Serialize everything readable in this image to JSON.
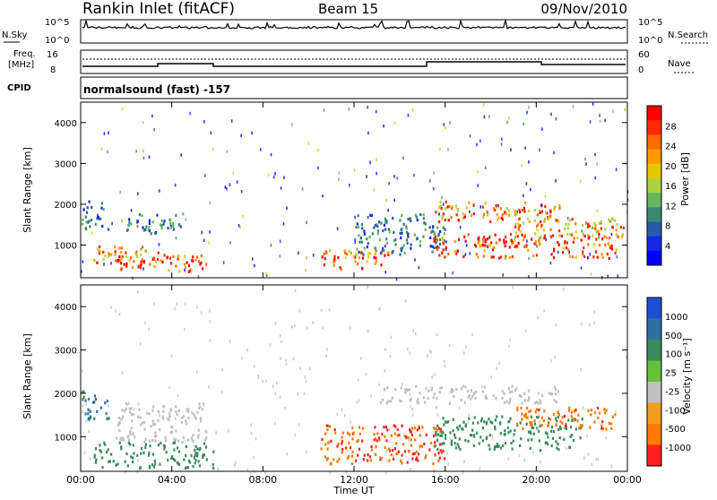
{
  "header": {
    "station": "Rankin Inlet (fitACF)",
    "beam": "Beam 15",
    "date": "09/Nov/2010"
  },
  "nsky_panel": {
    "left_label": "N.Sky",
    "left_ticks": [
      "10^5",
      "10^0"
    ],
    "right_label": "N.Search",
    "right_ticks": [
      "10^5",
      "10^0"
    ]
  },
  "freq_panel": {
    "left_label_1": "Freq.",
    "left_label_2": "[MHz]",
    "left_ticks": [
      "16",
      "8"
    ],
    "right_label": "Nave",
    "right_ticks": [
      "60",
      "0"
    ],
    "cpid_label": "CPID",
    "cpid_value": "normalsound (fast) -157"
  },
  "chart_data": [
    {
      "type": "heatmap",
      "name": "power",
      "ylabel": "Slant Range [km]",
      "y_ticks": [
        "1000",
        "2000",
        "3000",
        "4000"
      ],
      "ylim": [
        200,
        4500
      ],
      "x_ticks": [
        "00:00",
        "04:00",
        "08:00",
        "12:00",
        "16:00",
        "20:00",
        "00:00"
      ],
      "xlim_hours": [
        0,
        24
      ],
      "colorbar_label": "Power [dB]",
      "colorbar_ticks": [
        "28",
        "24",
        "20",
        "16",
        "12",
        "8",
        "4"
      ],
      "colorbar_colors": [
        "#ff0000",
        "#ff2a00",
        "#ff6a00",
        "#ff9a00",
        "#e7c800",
        "#a9d640",
        "#67b860",
        "#3a8a73",
        "#2b5aa8",
        "#1428e8",
        "#0000ff"
      ],
      "regions": [
        {
          "t0": 0.0,
          "t1": 1.2,
          "r0": 1400,
          "r1": 2100,
          "value": 8
        },
        {
          "t0": 0.5,
          "t1": 3.5,
          "r0": 600,
          "r1": 1000,
          "value": 20
        },
        {
          "t0": 1.5,
          "t1": 5.5,
          "r0": 350,
          "r1": 800,
          "value": 26
        },
        {
          "t0": 2.0,
          "t1": 4.5,
          "r0": 1300,
          "r1": 1800,
          "value": 8
        },
        {
          "t0": 10.5,
          "t1": 13.5,
          "r0": 400,
          "r1": 900,
          "value": 24
        },
        {
          "t0": 12.0,
          "t1": 16.0,
          "r0": 800,
          "r1": 1800,
          "value": 8
        },
        {
          "t0": 15.5,
          "t1": 21.0,
          "r0": 1600,
          "r1": 2100,
          "value": 24
        },
        {
          "t0": 15.5,
          "t1": 23.5,
          "r0": 700,
          "r1": 1300,
          "value": 27
        },
        {
          "t0": 19.0,
          "t1": 23.8,
          "r0": 1200,
          "r1": 1700,
          "value": 20
        }
      ]
    },
    {
      "type": "heatmap",
      "name": "velocity",
      "ylabel": "Slant Range [km]",
      "y_ticks": [
        "1000",
        "2000",
        "3000",
        "4000"
      ],
      "ylim": [
        200,
        4500
      ],
      "x_ticks": [
        "00:00",
        "04:00",
        "08:00",
        "12:00",
        "16:00",
        "20:00",
        "00:00"
      ],
      "xlim_hours": [
        0,
        24
      ],
      "xlabel": "Time UT",
      "colorbar_label": "Velocity [m s⁻¹]",
      "colorbar_ticks": [
        "1000",
        "500",
        "100",
        "25",
        "-25",
        "-100",
        "-500",
        "-1000"
      ],
      "colorbar_colors": [
        "#1f4fd1",
        "#2f6fa0",
        "#3a8a5a",
        "#69bf3a",
        "#c0c0c0",
        "#f0a020",
        "#ff7a00",
        "#ff2020"
      ],
      "regions": [
        {
          "t0": 0.0,
          "t1": 1.2,
          "r0": 1400,
          "r1": 2100,
          "value": 300
        },
        {
          "t0": 1.5,
          "t1": 5.5,
          "r0": 900,
          "r1": 1800,
          "value": 0
        },
        {
          "t0": 0.5,
          "t1": 5.8,
          "r0": 300,
          "r1": 900,
          "value": 200
        },
        {
          "t0": 10.5,
          "t1": 16.0,
          "r0": 400,
          "r1": 1300,
          "value": -300
        },
        {
          "t0": 13.0,
          "t1": 21.0,
          "r0": 1800,
          "r1": 2200,
          "value": 0
        },
        {
          "t0": 15.5,
          "t1": 22.0,
          "r0": 700,
          "r1": 1500,
          "value": 150
        },
        {
          "t0": 19.0,
          "t1": 23.5,
          "r0": 1200,
          "r1": 1700,
          "value": -250
        }
      ]
    }
  ]
}
